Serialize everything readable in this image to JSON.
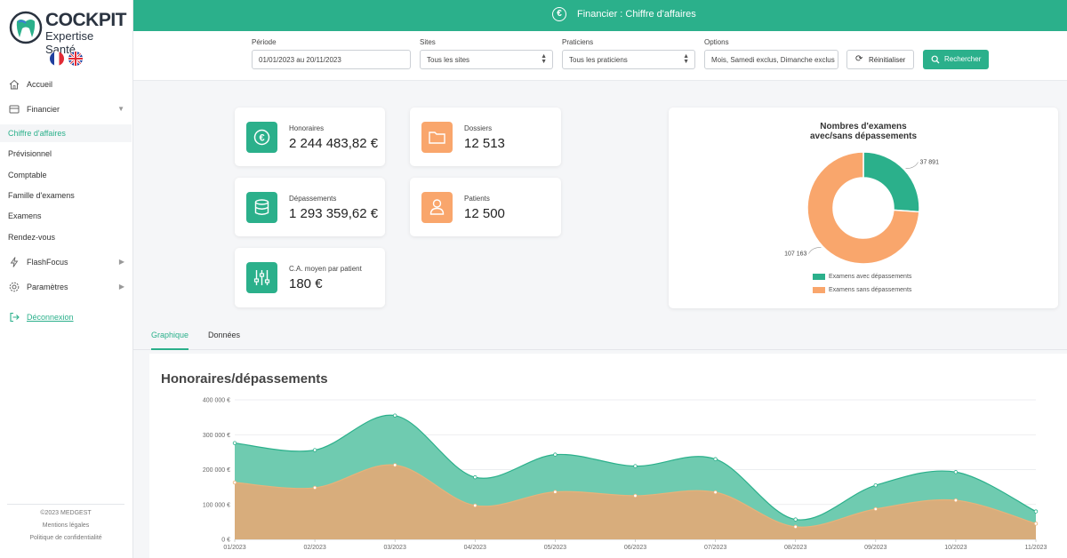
{
  "brand": {
    "name": "COCKPIT",
    "subtitle": "Expertise Santé"
  },
  "sidebar": {
    "nav": [
      {
        "label": "Accueil",
        "icon": "home-icon"
      },
      {
        "label": "Financier",
        "icon": "inbox-icon"
      }
    ],
    "financier_items": [
      "Chiffre d'affaires",
      "Prévisionnel",
      "Comptable",
      "Famille d'examens",
      "Examens",
      "Rendez-vous"
    ],
    "flashfocus": "FlashFocus",
    "parametres": "Paramètres",
    "logout": "Déconnexion",
    "footer": {
      "copyright": "©2023 MEDGEST",
      "legal": "Mentions légales",
      "privacy": "Politique de confidentialité"
    }
  },
  "header": {
    "title": "Financier : Chiffre d'affaires",
    "icon_glyph": "€"
  },
  "filters": {
    "period": {
      "label": "Période",
      "value": "01/01/2023 au 20/11/2023"
    },
    "sites": {
      "label": "Sites",
      "value": "Tous les sites"
    },
    "practitioners": {
      "label": "Praticiens",
      "value": "Tous les praticiens"
    },
    "options": {
      "label": "Options",
      "value": "Mois, Samedi exclus, Dimanche exclus"
    },
    "reset": "Réinitialiser",
    "search": "Rechercher"
  },
  "kpis": {
    "honoraires": {
      "label": "Honoraires",
      "value": "2 244 483,82 €"
    },
    "dossiers": {
      "label": "Dossiers",
      "value": "12 513"
    },
    "depassements": {
      "label": "Dépassements",
      "value": "1 293 359,62 €"
    },
    "patients": {
      "label": "Patients",
      "value": "12 500"
    },
    "ca_moyen": {
      "label": "C.A. moyen par patient",
      "value": "180 €"
    }
  },
  "colors": {
    "accent": "#2bb08b",
    "orange": "#f9a66c",
    "teal_area": "#6fcbb0",
    "tan_area": "#d8ad7c"
  },
  "tabs": [
    "Graphique",
    "Données"
  ],
  "chart_data": [
    {
      "type": "pie",
      "title_line1": "Nombres d'examens",
      "title_line2": "avec/sans dépassements",
      "labels": [
        "Examens avec dépassements",
        "Examens sans dépassements"
      ],
      "values": [
        37891,
        107163
      ],
      "value_labels": [
        "37 891",
        "107 163"
      ]
    },
    {
      "type": "area",
      "title": "Honoraires/dépassements",
      "categories": [
        "01/2023",
        "02/2023",
        "03/2023",
        "04/2023",
        "05/2023",
        "06/2023",
        "07/2023",
        "08/2023",
        "09/2023",
        "10/2023",
        "11/2023"
      ],
      "series": [
        {
          "name": "Honoraires",
          "values": [
            276000,
            256000,
            355000,
            178000,
            243000,
            210000,
            230000,
            57000,
            155000,
            193000,
            80000
          ]
        },
        {
          "name": "Dépassements",
          "values": [
            163000,
            148000,
            213000,
            97000,
            136000,
            125000,
            135000,
            36000,
            87000,
            112000,
            45000
          ]
        }
      ],
      "ylim": [
        0,
        400000
      ],
      "yticks": [
        "0 €",
        "100 000 €",
        "200 000 €",
        "300 000 €",
        "400 000 €"
      ]
    }
  ]
}
